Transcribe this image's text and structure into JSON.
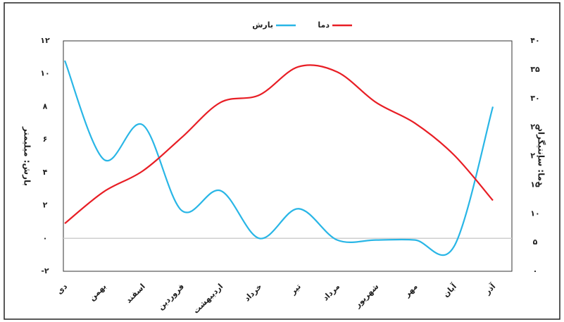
{
  "chart_data": {
    "type": "line",
    "categories": [
      "دی",
      "بهمن",
      "اسفند",
      "فروردین",
      "اردیبهشت",
      "خرداد",
      "تیر",
      "مرداد",
      "شهریور",
      "مهر",
      "آبان",
      "آذر"
    ],
    "y_label": "بارش: میلیمتر",
    "y2_label": "دما: سانتیگراد",
    "ylim": [
      -2,
      12
    ],
    "yticks": [
      {
        "value": -2,
        "label": "-۲"
      },
      {
        "value": 0,
        "label": "۰"
      },
      {
        "value": 2,
        "label": "۲"
      },
      {
        "value": 4,
        "label": "۴"
      },
      {
        "value": 6,
        "label": "۶"
      },
      {
        "value": 8,
        "label": "۸"
      },
      {
        "value": 10,
        "label": "۱۰"
      },
      {
        "value": 12,
        "label": "۱۲"
      }
    ],
    "y2lim": [
      0,
      40
    ],
    "y2ticks": [
      {
        "value": 0,
        "label": "۰"
      },
      {
        "value": 5,
        "label": "۵"
      },
      {
        "value": 10,
        "label": "۱۰"
      },
      {
        "value": 15,
        "label": "۱۵"
      },
      {
        "value": 20,
        "label": "۲۰"
      },
      {
        "value": 25,
        "label": "۲۵"
      },
      {
        "value": 30,
        "label": "۳۰"
      },
      {
        "value": 35,
        "label": "۳۵"
      },
      {
        "value": 40,
        "label": "۴۰"
      }
    ],
    "series": [
      {
        "name": "بارش",
        "color": "#29b6e6",
        "values": [
          10.8,
          4.8,
          6.9,
          1.7,
          2.9,
          0,
          1.8,
          -0.1,
          -0.1,
          -0.1,
          -0.5,
          8
        ]
      },
      {
        "name": "دما",
        "color": "#e81e25",
        "axis": "y2",
        "values": [
          8.3,
          13.8,
          17.4,
          23.2,
          29.3,
          30.6,
          35.5,
          34.6,
          29.3,
          25.7,
          20.2,
          12.3
        ]
      }
    ]
  }
}
